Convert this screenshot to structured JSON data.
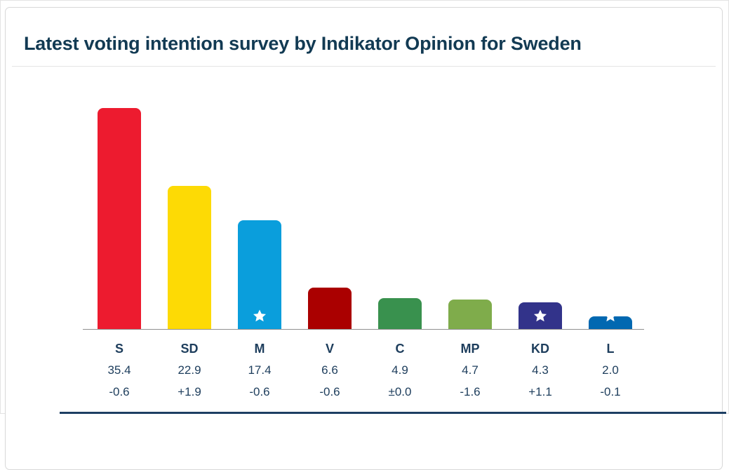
{
  "header": {
    "title": "Latest voting intention survey by Indikator Opinion for Sweden"
  },
  "colors": {
    "title": "#123a53",
    "text": "#1d3d5c",
    "axis": "#909090",
    "divider": "#e4e4e4",
    "card_border": "#d8d8d8",
    "footer_strip": "#1d3f63",
    "star": "#ffffff"
  },
  "chart_data": {
    "type": "bar",
    "title": "Latest voting intention survey by Indikator Opinion for Sweden",
    "categories": [
      "S",
      "SD",
      "M",
      "V",
      "C",
      "MP",
      "KD",
      "L"
    ],
    "values": [
      35.4,
      22.9,
      17.4,
      6.6,
      4.9,
      4.7,
      4.3,
      2.0
    ],
    "value_labels": [
      "35.4",
      "22.9",
      "17.4",
      "6.6",
      "4.9",
      "4.7",
      "4.3",
      "2.0"
    ],
    "change_labels": [
      "-0.6",
      "+1.9",
      "-0.6",
      "-0.6",
      "±0.0",
      "-1.6",
      "+1.1",
      "-0.1"
    ],
    "bar_colors": [
      "#ed1b2f",
      "#fdda05",
      "#0a9edc",
      "#aa0000",
      "#39914e",
      "#7fac4b",
      "#32338a",
      "#0168b1"
    ],
    "government_star": [
      false,
      false,
      true,
      false,
      false,
      false,
      true,
      true
    ],
    "xlabel": "",
    "ylabel": "",
    "ylim": [
      0,
      36
    ],
    "grid": false,
    "legend": false
  }
}
